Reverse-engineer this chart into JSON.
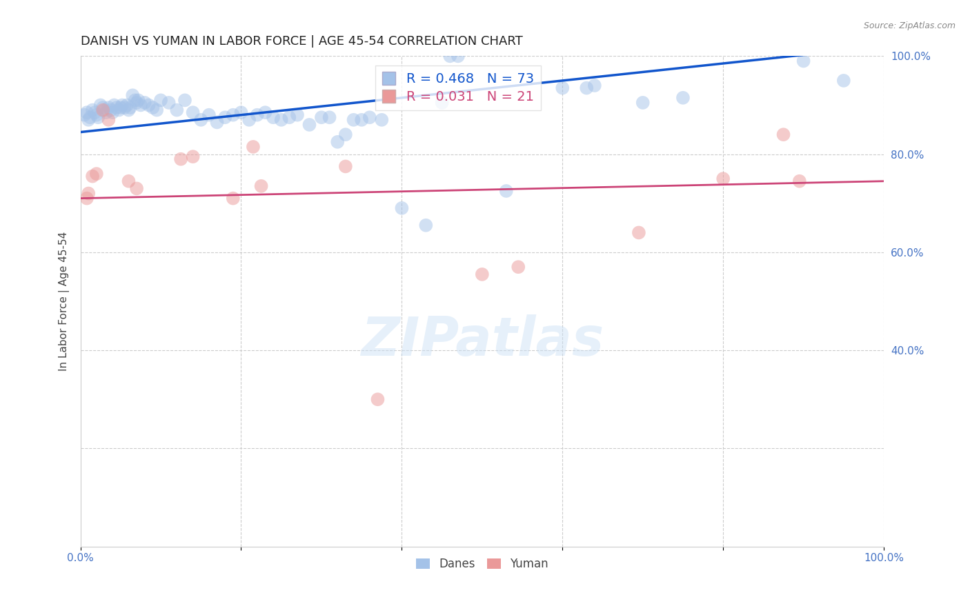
{
  "title": "DANISH VS YUMAN IN LABOR FORCE | AGE 45-54 CORRELATION CHART",
  "source": "Source: ZipAtlas.com",
  "ylabel": "In Labor Force | Age 45-54",
  "xlim": [
    0.0,
    1.0
  ],
  "ylim": [
    0.0,
    1.0
  ],
  "danes_R": 0.468,
  "danes_N": 73,
  "yuman_R": 0.031,
  "yuman_N": 21,
  "danes_color": "#a4c2e8",
  "danes_line_color": "#1155cc",
  "yuman_color": "#ea9999",
  "yuman_line_color": "#cc4477",
  "danes_scatter_x": [
    0.005,
    0.008,
    0.01,
    0.012,
    0.015,
    0.018,
    0.02,
    0.022,
    0.025,
    0.028,
    0.03,
    0.032,
    0.035,
    0.038,
    0.04,
    0.042,
    0.045,
    0.048,
    0.05,
    0.052,
    0.055,
    0.058,
    0.06,
    0.062,
    0.065,
    0.068,
    0.07,
    0.072,
    0.075,
    0.08,
    0.085,
    0.09,
    0.095,
    0.1,
    0.11,
    0.12,
    0.13,
    0.14,
    0.15,
    0.16,
    0.17,
    0.18,
    0.19,
    0.2,
    0.21,
    0.22,
    0.23,
    0.24,
    0.25,
    0.26,
    0.27,
    0.285,
    0.3,
    0.31,
    0.32,
    0.33,
    0.34,
    0.35,
    0.36,
    0.375,
    0.4,
    0.43,
    0.45,
    0.46,
    0.47,
    0.53,
    0.6,
    0.63,
    0.64,
    0.7,
    0.75,
    0.9,
    0.95
  ],
  "danes_scatter_y": [
    0.88,
    0.885,
    0.87,
    0.875,
    0.89,
    0.885,
    0.88,
    0.875,
    0.9,
    0.895,
    0.89,
    0.885,
    0.895,
    0.89,
    0.885,
    0.9,
    0.895,
    0.89,
    0.895,
    0.9,
    0.895,
    0.9,
    0.89,
    0.895,
    0.92,
    0.91,
    0.905,
    0.91,
    0.9,
    0.905,
    0.9,
    0.895,
    0.89,
    0.91,
    0.905,
    0.89,
    0.91,
    0.885,
    0.87,
    0.88,
    0.865,
    0.875,
    0.88,
    0.885,
    0.87,
    0.88,
    0.885,
    0.875,
    0.87,
    0.875,
    0.88,
    0.86,
    0.875,
    0.875,
    0.825,
    0.84,
    0.87,
    0.87,
    0.875,
    0.87,
    0.69,
    0.655,
    0.905,
    1.0,
    1.0,
    0.725,
    0.935,
    0.935,
    0.94,
    0.905,
    0.915,
    0.99,
    0.95
  ],
  "yuman_scatter_x": [
    0.008,
    0.01,
    0.015,
    0.02,
    0.028,
    0.035,
    0.06,
    0.07,
    0.125,
    0.14,
    0.19,
    0.215,
    0.225,
    0.33,
    0.37,
    0.5,
    0.545,
    0.695,
    0.8,
    0.875,
    0.895
  ],
  "yuman_scatter_y": [
    0.71,
    0.72,
    0.755,
    0.76,
    0.89,
    0.87,
    0.745,
    0.73,
    0.79,
    0.795,
    0.71,
    0.815,
    0.735,
    0.775,
    0.3,
    0.555,
    0.57,
    0.64,
    0.75,
    0.84,
    0.745
  ],
  "danes_line_x0": 0.0,
  "danes_line_x1": 1.0,
  "danes_line_y0": 0.845,
  "danes_line_y1": 1.02,
  "yuman_line_x0": 0.0,
  "yuman_line_x1": 1.0,
  "yuman_line_y0": 0.71,
  "yuman_line_y1": 0.745,
  "watermark": "ZIPatlas",
  "background_color": "#ffffff",
  "grid_color": "#cccccc",
  "title_fontsize": 13,
  "label_fontsize": 11,
  "tick_fontsize": 11,
  "legend_fontsize": 14
}
